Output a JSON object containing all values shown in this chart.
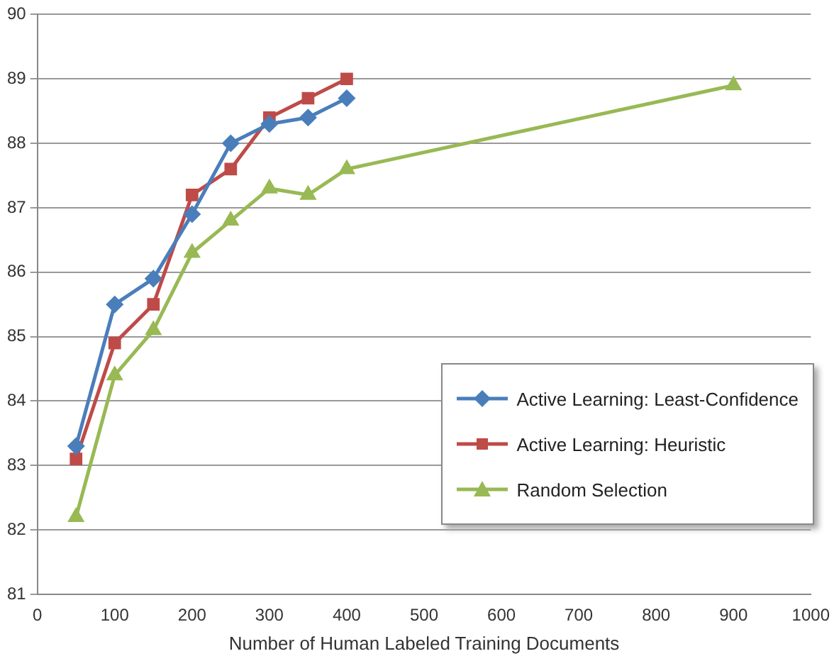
{
  "chart_data": {
    "type": "line",
    "xlabel": "Number of Human Labeled Training Documents",
    "x": [
      50,
      100,
      150,
      200,
      250,
      300,
      350,
      400
    ],
    "series": [
      {
        "name": "Active Learning: Least-Confidence",
        "color": "#4a7ebb",
        "marker": "diamond",
        "values": [
          83.3,
          85.5,
          85.9,
          86.9,
          88.0,
          88.3,
          88.4,
          88.7
        ]
      },
      {
        "name": "Active Learning: Heuristic",
        "color": "#be4b48",
        "marker": "square",
        "values": [
          83.1,
          84.9,
          85.5,
          87.2,
          87.6,
          88.4,
          88.7,
          89.0
        ]
      },
      {
        "name": "Random Selection",
        "color": "#98b954",
        "marker": "triangle",
        "x": [
          50,
          100,
          150,
          200,
          250,
          300,
          350,
          400,
          900
        ],
        "values": [
          82.2,
          84.4,
          85.1,
          86.3,
          86.8,
          87.3,
          87.2,
          87.6,
          88.9
        ]
      }
    ],
    "xlim": [
      0,
      1000
    ],
    "xticks": [
      0,
      100,
      200,
      300,
      400,
      500,
      600,
      700,
      800,
      900,
      1000
    ],
    "ylim": [
      81,
      90
    ],
    "yticks": [
      81,
      82,
      83,
      84,
      85,
      86,
      87,
      88,
      89,
      90
    ],
    "grid": "y",
    "legend": "bottom right",
    "line_style": "solid"
  }
}
